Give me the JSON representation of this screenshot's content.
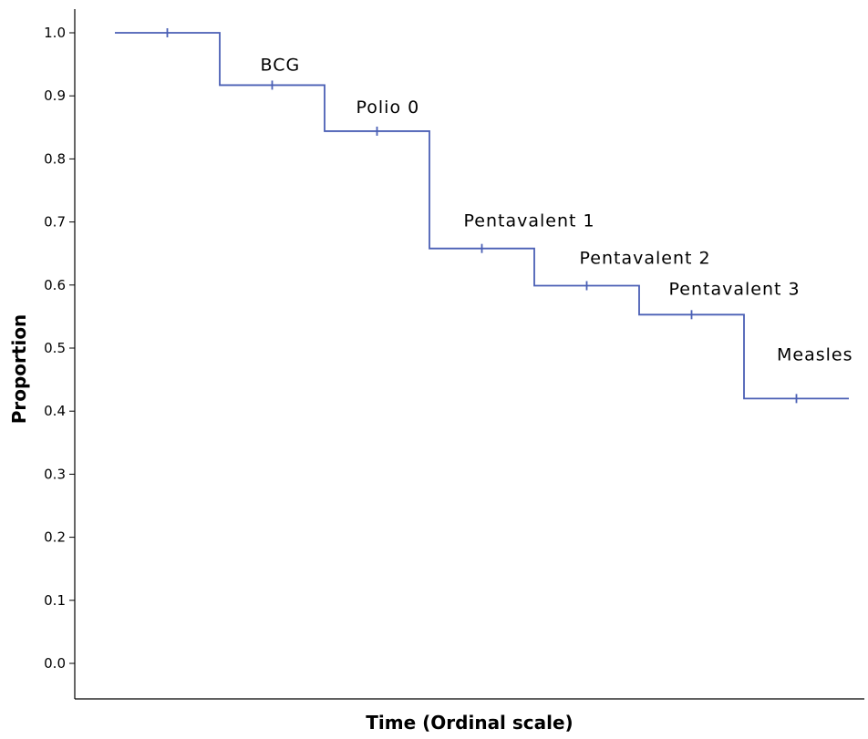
{
  "chart_data": {
    "type": "line",
    "step": true,
    "title": "",
    "xlabel": "Time (Ordinal scale)",
    "ylabel": "Proportion",
    "ylim": [
      0.0,
      1.0
    ],
    "y_ticks": [
      "0.0",
      "0.1",
      "0.2",
      "0.3",
      "0.4",
      "0.5",
      "0.6",
      "0.7",
      "0.8",
      "0.9",
      "1.0"
    ],
    "x_ticks_shown": false,
    "grid": false,
    "legend": "none",
    "line_color": "#4a5fb5",
    "x": [
      1,
      2,
      3,
      4,
      5,
      6,
      7
    ],
    "values": [
      1.0,
      0.917,
      0.844,
      0.658,
      0.599,
      0.553,
      0.42
    ],
    "annotations": [
      "BCG",
      "Polio 0",
      "Pentavalent 1",
      "Pentavalent 2",
      "Pentavalent 3",
      "Measles"
    ]
  }
}
